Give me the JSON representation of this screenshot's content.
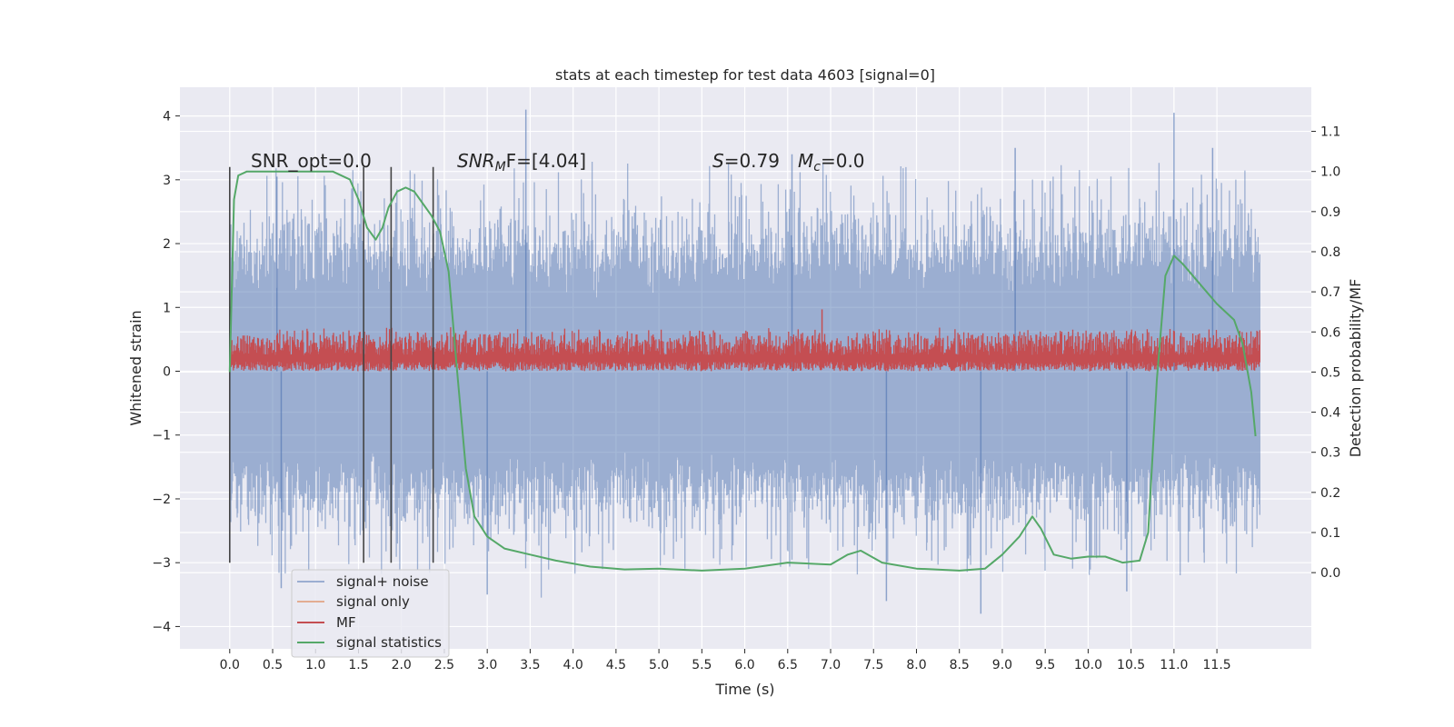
{
  "chart_data": {
    "type": "line",
    "title": "stats at each timestep for test data 4603 [signal=0]",
    "xlabel": "Time (s)",
    "ylabel": "Whitened strain",
    "y2label": "Detection probability/MF",
    "xlim": [
      -0.58,
      12.6
    ],
    "ylim": [
      -4.35,
      4.45
    ],
    "y2lim": [
      -0.19,
      1.21
    ],
    "x_ticks": [
      "0.0",
      "0.5",
      "1.0",
      "1.5",
      "2.0",
      "2.5",
      "3.0",
      "3.5",
      "4.0",
      "4.5",
      "5.0",
      "5.5",
      "6.0",
      "6.5",
      "7.0",
      "7.5",
      "8.0",
      "8.5",
      "9.0",
      "9.5",
      "10.0",
      "10.5",
      "11.0",
      "11.5"
    ],
    "y_ticks": [
      "4",
      "3",
      "2",
      "1",
      "0",
      "−1",
      "−2",
      "−3",
      "−4"
    ],
    "y2_ticks": [
      "1.1",
      "1.0",
      "0.9",
      "0.8",
      "0.7",
      "0.6",
      "0.5",
      "0.4",
      "0.3",
      "0.2",
      "0.1",
      "0.0"
    ],
    "grid": true,
    "legend_placement": "lower-left",
    "legend": [
      "signal+ noise",
      "signal only",
      "MF",
      "signal statistics"
    ],
    "colors": {
      "noise": "#4c72b0",
      "signal_only": "#dd8452",
      "mf": "#c44e52",
      "stats": "#55a868",
      "vline": "#444444",
      "panel": "#eaeaf2",
      "grid": "#ffffff"
    },
    "noise_envelope": {
      "x": [
        0.0,
        12.0
      ],
      "typical_range": [
        -2.0,
        2.0
      ],
      "peaks_positive": [
        [
          0.55,
          3.05
        ],
        [
          3.45,
          4.1
        ],
        [
          6.55,
          3.4
        ],
        [
          9.15,
          3.5
        ],
        [
          11.0,
          4.05
        ],
        [
          11.45,
          3.5
        ]
      ],
      "peaks_negative": [
        [
          0.6,
          -3.4
        ],
        [
          3.0,
          -3.5
        ],
        [
          7.65,
          -3.6
        ],
        [
          8.75,
          -3.8
        ],
        [
          10.45,
          -3.45
        ]
      ]
    },
    "mf_band": {
      "x": [
        0.0,
        12.0
      ],
      "range_strain": [
        0.0,
        0.7
      ],
      "peak": [
        6.9,
        0.97
      ]
    },
    "vlines": {
      "x": [
        0.0,
        1.56,
        1.88,
        2.37
      ],
      "y_range": [
        -3.0,
        3.2
      ]
    },
    "annotations": {
      "snr_opt": "SNR_opt=0.0",
      "snr_mf_base": "SNR",
      "snr_mf_sub": "M",
      "snr_mf_rest": "F=[4.04]",
      "s_label": "S",
      "s_value": "=0.79",
      "mc_label": "M",
      "mc_sub": "c",
      "mc_value": "=0.0"
    },
    "series": [
      {
        "name": "signal statistics",
        "axis": "right",
        "x": [
          0.0,
          0.05,
          0.1,
          0.2,
          0.4,
          0.8,
          1.2,
          1.4,
          1.5,
          1.6,
          1.7,
          1.78,
          1.85,
          1.95,
          2.05,
          2.15,
          2.25,
          2.35,
          2.45,
          2.55,
          2.65,
          2.75,
          2.85,
          3.0,
          3.2,
          3.5,
          3.8,
          4.2,
          4.6,
          5.0,
          5.5,
          6.0,
          6.5,
          7.0,
          7.2,
          7.35,
          7.6,
          8.0,
          8.5,
          8.8,
          9.0,
          9.2,
          9.35,
          9.45,
          9.6,
          9.8,
          10.0,
          10.2,
          10.4,
          10.6,
          10.7,
          10.8,
          10.9,
          11.0,
          11.1,
          11.3,
          11.5,
          11.7,
          11.8,
          11.9,
          11.95
        ],
        "y": [
          0.5,
          0.93,
          0.99,
          1.0,
          1.0,
          1.0,
          1.0,
          0.98,
          0.93,
          0.86,
          0.83,
          0.86,
          0.91,
          0.95,
          0.96,
          0.95,
          0.92,
          0.89,
          0.85,
          0.75,
          0.5,
          0.26,
          0.14,
          0.09,
          0.06,
          0.045,
          0.03,
          0.015,
          0.008,
          0.01,
          0.005,
          0.01,
          0.025,
          0.02,
          0.045,
          0.055,
          0.025,
          0.01,
          0.005,
          0.01,
          0.045,
          0.09,
          0.14,
          0.11,
          0.045,
          0.035,
          0.04,
          0.04,
          0.025,
          0.03,
          0.1,
          0.48,
          0.74,
          0.79,
          0.77,
          0.72,
          0.67,
          0.63,
          0.57,
          0.45,
          0.34
        ]
      }
    ]
  }
}
